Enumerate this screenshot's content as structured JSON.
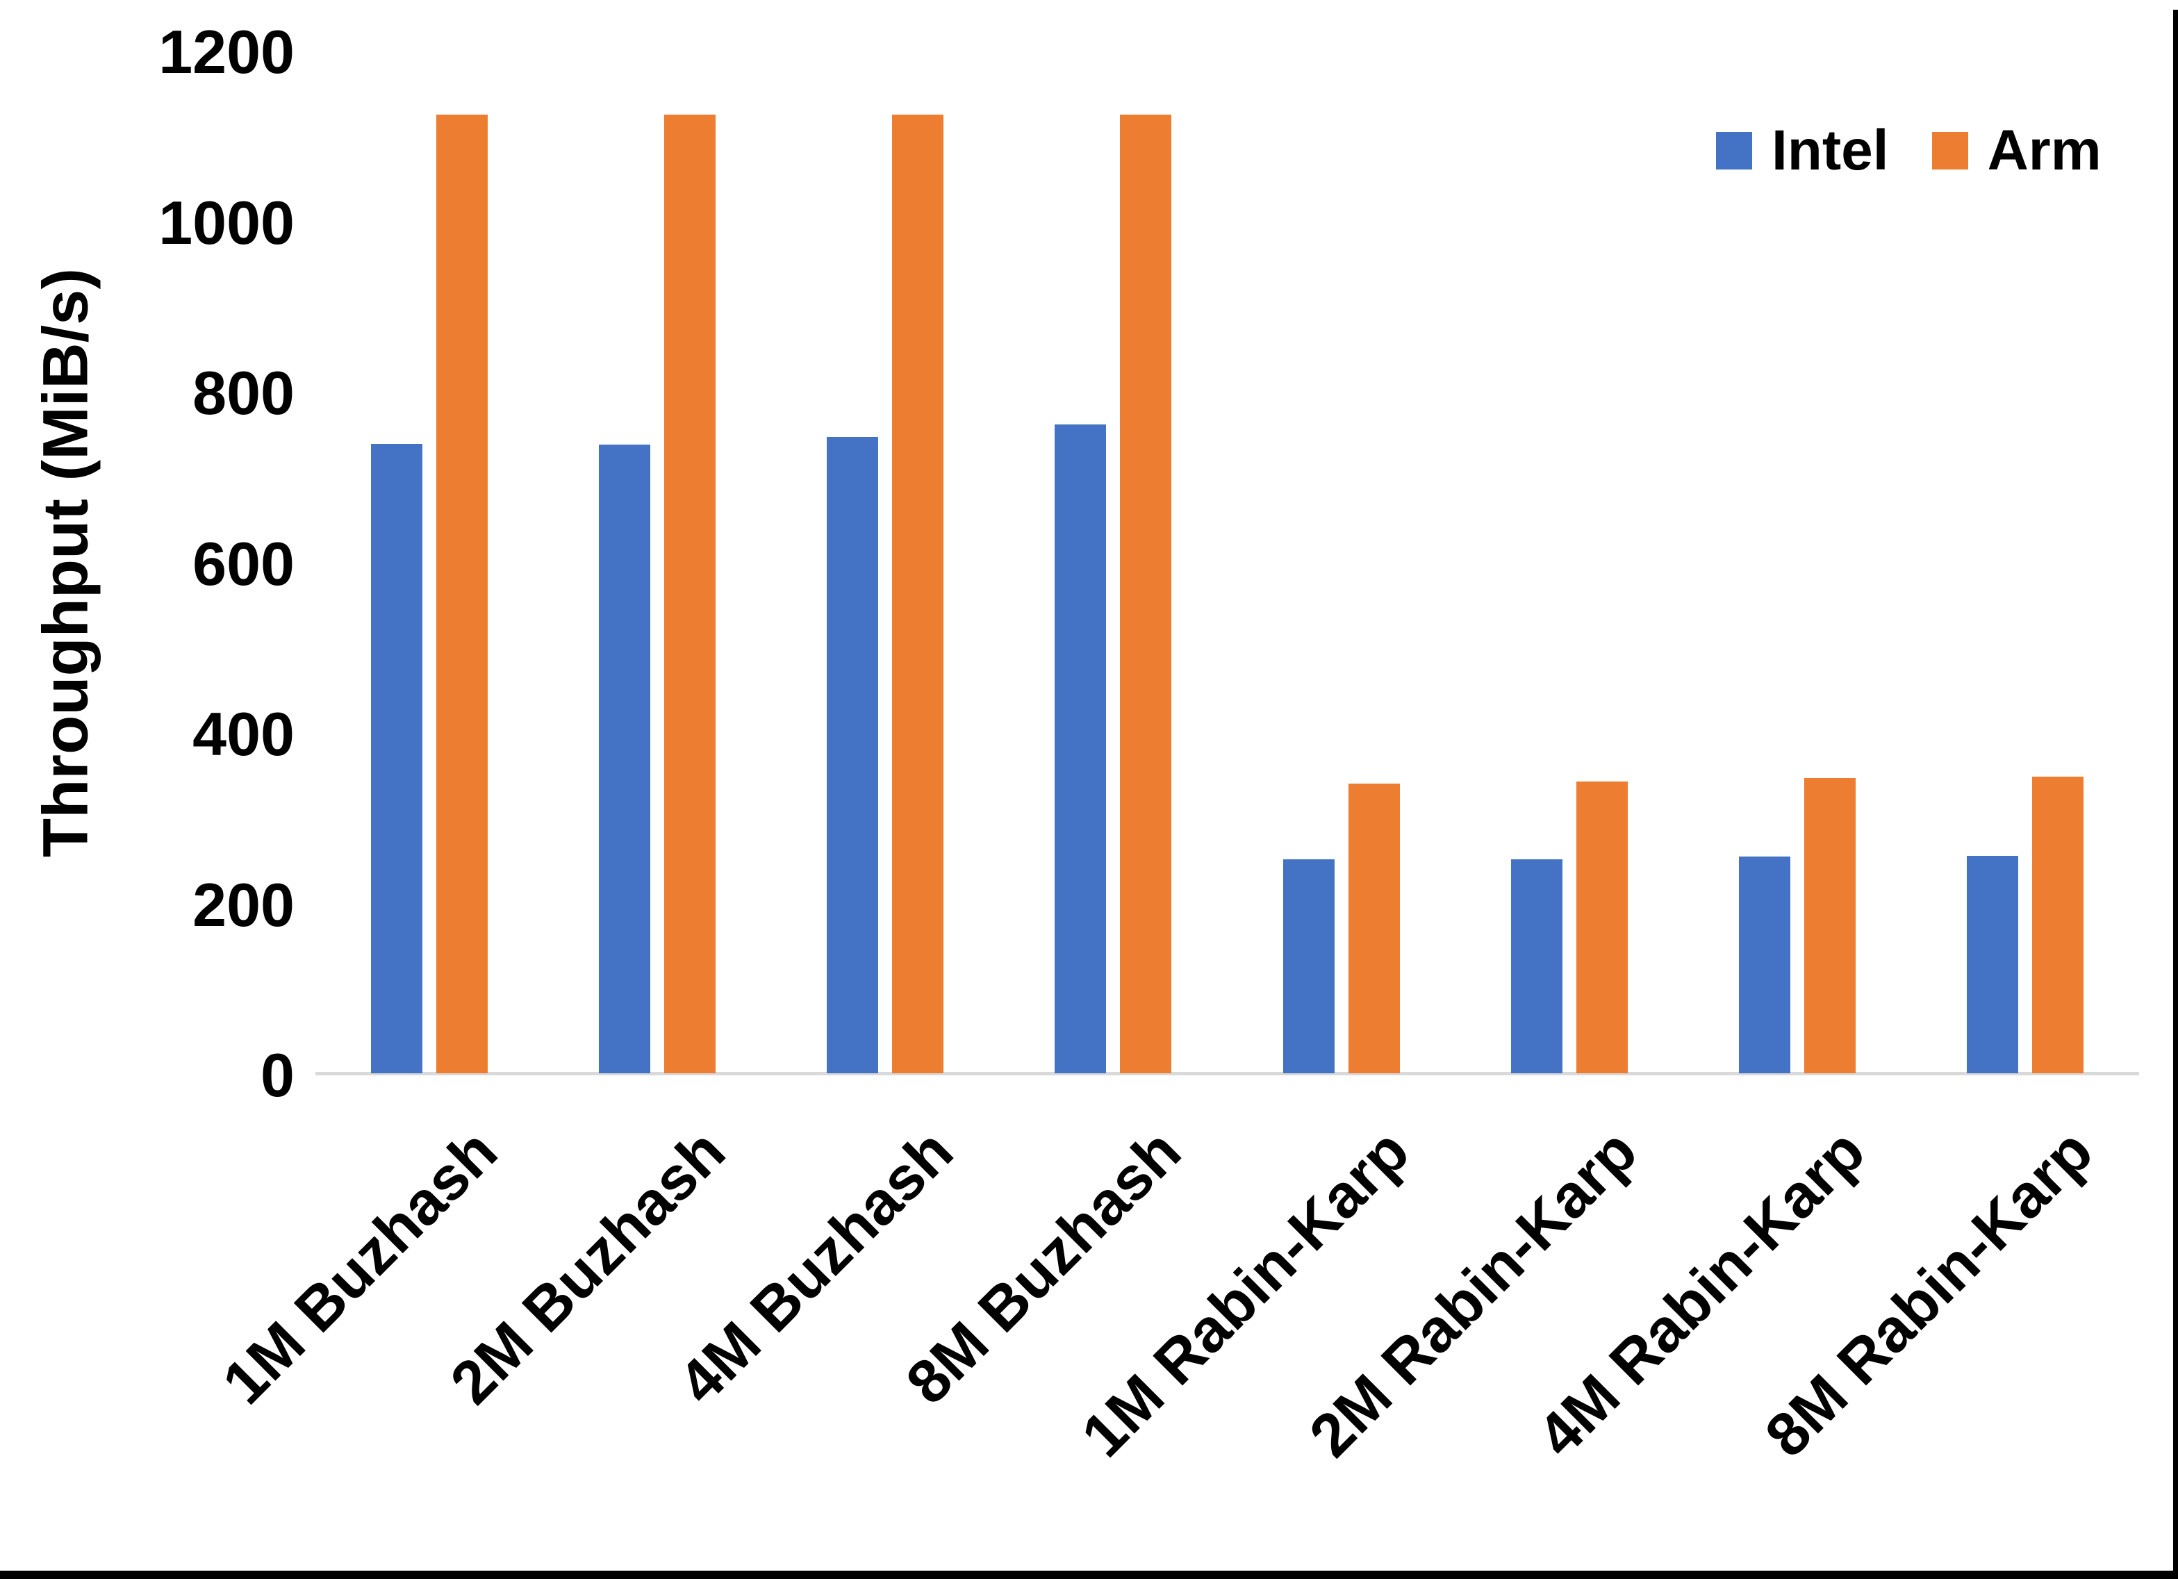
{
  "chart_data": {
    "type": "bar",
    "title": "",
    "xlabel": "",
    "ylabel": "Throughput (MiB/s)",
    "ylim": [
      0,
      1200
    ],
    "yticks": [
      0,
      200,
      400,
      600,
      800,
      1000,
      1200
    ],
    "grid": false,
    "legend_position": "top-right",
    "categories": [
      "1M Buzhash",
      "2M Buzhash",
      "4M Buzhash",
      "8M Buzhash",
      "1M Rabin-Karp",
      "2M Rabin-Karp",
      "4M Rabin-Karp",
      "8M Rabin-Karp"
    ],
    "series": [
      {
        "name": "Intel",
        "color": "#4472C4",
        "values": [
          738,
          737,
          746,
          761,
          251,
          251,
          254,
          255
        ]
      },
      {
        "name": "Arm",
        "color": "#ED7D31",
        "values": [
          1124,
          1124,
          1124,
          1124,
          340,
          342,
          346,
          348
        ]
      }
    ]
  },
  "colors": {
    "axis_line": "#D9D9D9",
    "text": "#000000",
    "background": "#FFFFFF",
    "screen_edge": "#000000"
  }
}
